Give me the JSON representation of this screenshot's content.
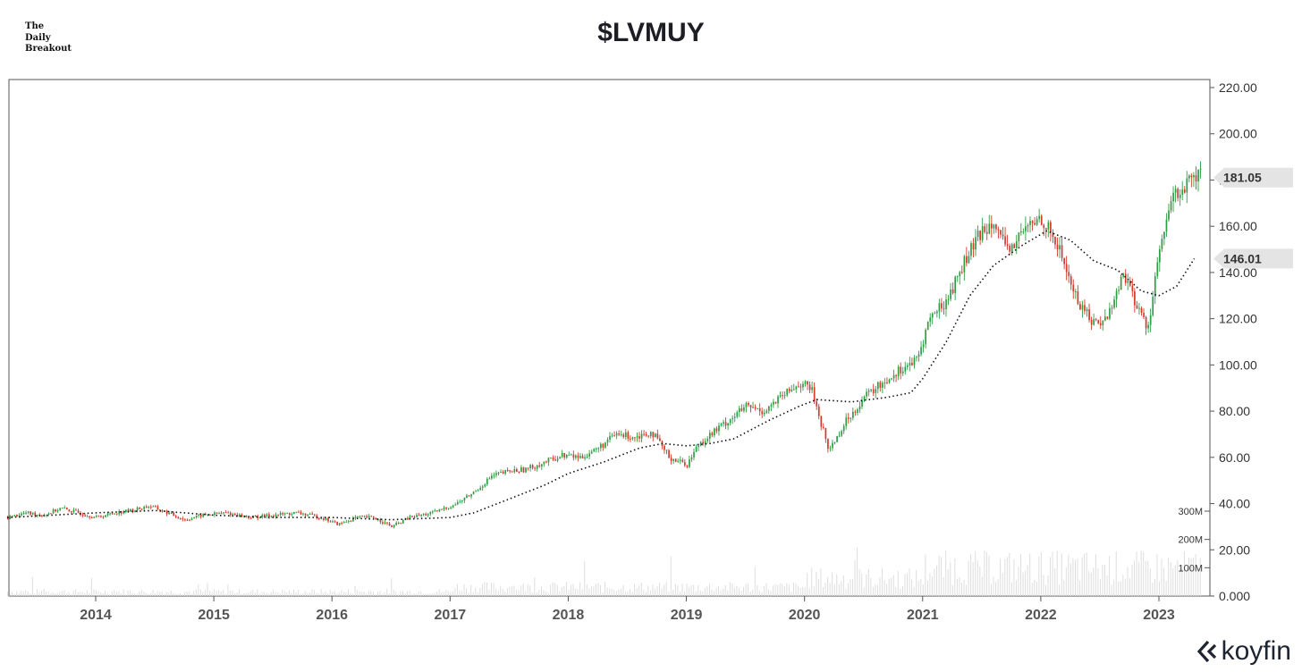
{
  "brand": {
    "line1": "The",
    "line2": "Daily",
    "line3": "Breakout"
  },
  "title": "$LVMUY",
  "logo": {
    "text": "koyfin",
    "icon": "koyfin-chevron-icon"
  },
  "chart_data": {
    "type": "candlestick",
    "title": "$LVMUY",
    "x_range": [
      2013.25,
      2023.35
    ],
    "ylim": [
      0,
      225
    ],
    "x_ticks": [
      "2014",
      "2015",
      "2016",
      "2017",
      "2018",
      "2019",
      "2020",
      "2021",
      "2022",
      "2023"
    ],
    "y_ticks": [
      "0.000",
      "20.00",
      "40.00",
      "60.00",
      "80.00",
      "100.00",
      "120.00",
      "140.00",
      "160.00",
      "180.00",
      "200.00",
      "220.00"
    ],
    "volume_ticks": [
      "100M",
      "200M",
      "300M"
    ],
    "volume_max": 300000000,
    "price_series": {
      "name": "",
      "points": [
        [
          2013.25,
          34
        ],
        [
          2013.4,
          36
        ],
        [
          2013.55,
          35
        ],
        [
          2013.7,
          38
        ],
        [
          2013.85,
          36
        ],
        [
          2014.0,
          34
        ],
        [
          2014.15,
          36
        ],
        [
          2014.3,
          37
        ],
        [
          2014.45,
          39
        ],
        [
          2014.6,
          36
        ],
        [
          2014.75,
          33
        ],
        [
          2014.9,
          35
        ],
        [
          2015.1,
          36
        ],
        [
          2015.3,
          34
        ],
        [
          2015.5,
          35
        ],
        [
          2015.7,
          36
        ],
        [
          2015.9,
          34
        ],
        [
          2016.05,
          31
        ],
        [
          2016.2,
          34
        ],
        [
          2016.35,
          34
        ],
        [
          2016.5,
          30
        ],
        [
          2016.65,
          34
        ],
        [
          2016.85,
          36
        ],
        [
          2017.05,
          40
        ],
        [
          2017.2,
          45
        ],
        [
          2017.35,
          52
        ],
        [
          2017.5,
          54
        ],
        [
          2017.65,
          55
        ],
        [
          2017.8,
          58
        ],
        [
          2017.95,
          61
        ],
        [
          2018.1,
          60
        ],
        [
          2018.25,
          64
        ],
        [
          2018.4,
          70
        ],
        [
          2018.55,
          69
        ],
        [
          2018.7,
          71
        ],
        [
          2018.85,
          60
        ],
        [
          2019.0,
          57
        ],
        [
          2019.1,
          66
        ],
        [
          2019.3,
          74
        ],
        [
          2019.5,
          82
        ],
        [
          2019.65,
          80
        ],
        [
          2019.8,
          86
        ],
        [
          2019.95,
          92
        ],
        [
          2020.05,
          90
        ],
        [
          2020.2,
          63
        ],
        [
          2020.35,
          76
        ],
        [
          2020.5,
          86
        ],
        [
          2020.65,
          92
        ],
        [
          2020.8,
          98
        ],
        [
          2020.95,
          102
        ],
        [
          2021.05,
          120
        ],
        [
          2021.2,
          128
        ],
        [
          2021.35,
          145
        ],
        [
          2021.5,
          158
        ],
        [
          2021.6,
          164
        ],
        [
          2021.7,
          148
        ],
        [
          2021.85,
          158
        ],
        [
          2022.0,
          164
        ],
        [
          2022.15,
          150
        ],
        [
          2022.3,
          128
        ],
        [
          2022.45,
          118
        ],
        [
          2022.55,
          120
        ],
        [
          2022.7,
          140
        ],
        [
          2022.8,
          126
        ],
        [
          2022.9,
          116
        ],
        [
          2023.0,
          150
        ],
        [
          2023.05,
          158
        ],
        [
          2023.1,
          172
        ],
        [
          2023.2,
          176
        ],
        [
          2023.3,
          181.05
        ]
      ]
    },
    "moving_average": {
      "name": "",
      "style": "dotted",
      "points": [
        [
          2013.25,
          34
        ],
        [
          2014.0,
          36
        ],
        [
          2014.5,
          37
        ],
        [
          2015.0,
          35
        ],
        [
          2015.5,
          34
        ],
        [
          2016.0,
          34
        ],
        [
          2016.5,
          33
        ],
        [
          2017.0,
          34
        ],
        [
          2017.2,
          36
        ],
        [
          2017.5,
          42
        ],
        [
          2017.8,
          48
        ],
        [
          2018.0,
          53
        ],
        [
          2018.3,
          58
        ],
        [
          2018.6,
          64
        ],
        [
          2018.8,
          66
        ],
        [
          2019.0,
          65
        ],
        [
          2019.2,
          66
        ],
        [
          2019.4,
          68
        ],
        [
          2019.7,
          76
        ],
        [
          2019.95,
          82
        ],
        [
          2020.1,
          85
        ],
        [
          2020.4,
          84
        ],
        [
          2020.7,
          86
        ],
        [
          2020.9,
          88
        ],
        [
          2021.0,
          94
        ],
        [
          2021.2,
          110
        ],
        [
          2021.4,
          130
        ],
        [
          2021.6,
          143
        ],
        [
          2021.85,
          152
        ],
        [
          2022.05,
          158
        ],
        [
          2022.25,
          154
        ],
        [
          2022.45,
          145
        ],
        [
          2022.65,
          141
        ],
        [
          2022.85,
          132
        ],
        [
          2023.0,
          130
        ],
        [
          2023.15,
          134
        ],
        [
          2023.3,
          146.01
        ]
      ]
    },
    "price_labels": [
      {
        "value": "181.05",
        "y": 181.05
      },
      {
        "value": "146.01",
        "y": 146.01
      }
    ],
    "colors": {
      "up": "#2e9e45",
      "down": "#d33a2c",
      "axis": "#555555",
      "grid": "#e9e9e9",
      "volume": "#dedede",
      "marker": "#e4e4e4"
    },
    "grid": false,
    "legend": "none"
  }
}
